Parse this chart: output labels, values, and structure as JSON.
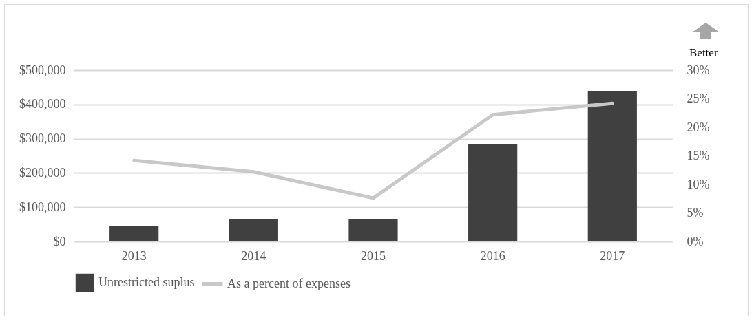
{
  "chart_data": {
    "type": "bar",
    "categories": [
      "2013",
      "2014",
      "2015",
      "2016",
      "2017"
    ],
    "series": [
      {
        "name": "Unrestricted suplus",
        "color": "#404040",
        "values": [
          45000,
          65000,
          65000,
          285000,
          440000
        ]
      },
      {
        "name": "As a percent of expenses",
        "type": "line",
        "axis": "y2",
        "color": "#c8c8c8",
        "values": [
          14.2,
          12.2,
          7.6,
          22.2,
          24.2
        ]
      }
    ],
    "ylim": [
      0,
      500000
    ],
    "yticks": [
      {
        "value": 0,
        "label": "$0"
      },
      {
        "value": 100000,
        "label": "$100,000"
      },
      {
        "value": 200000,
        "label": "$200,000"
      },
      {
        "value": 300000,
        "label": "$300,000"
      },
      {
        "value": 400000,
        "label": "$400,000"
      },
      {
        "value": 500000,
        "label": "$500,000"
      }
    ],
    "y2lim": [
      0,
      30
    ],
    "y2ticks": [
      {
        "value": 0,
        "label": "0%"
      },
      {
        "value": 5,
        "label": "5%"
      },
      {
        "value": 10,
        "label": "10%"
      },
      {
        "value": 15,
        "label": "15%"
      },
      {
        "value": 20,
        "label": "20%"
      },
      {
        "value": 25,
        "label": "25%"
      },
      {
        "value": 30,
        "label": "30%"
      }
    ],
    "grid": "y",
    "legend": "bottom",
    "line_style": "solid",
    "marker": "none",
    "annotations": [
      "Better"
    ]
  }
}
